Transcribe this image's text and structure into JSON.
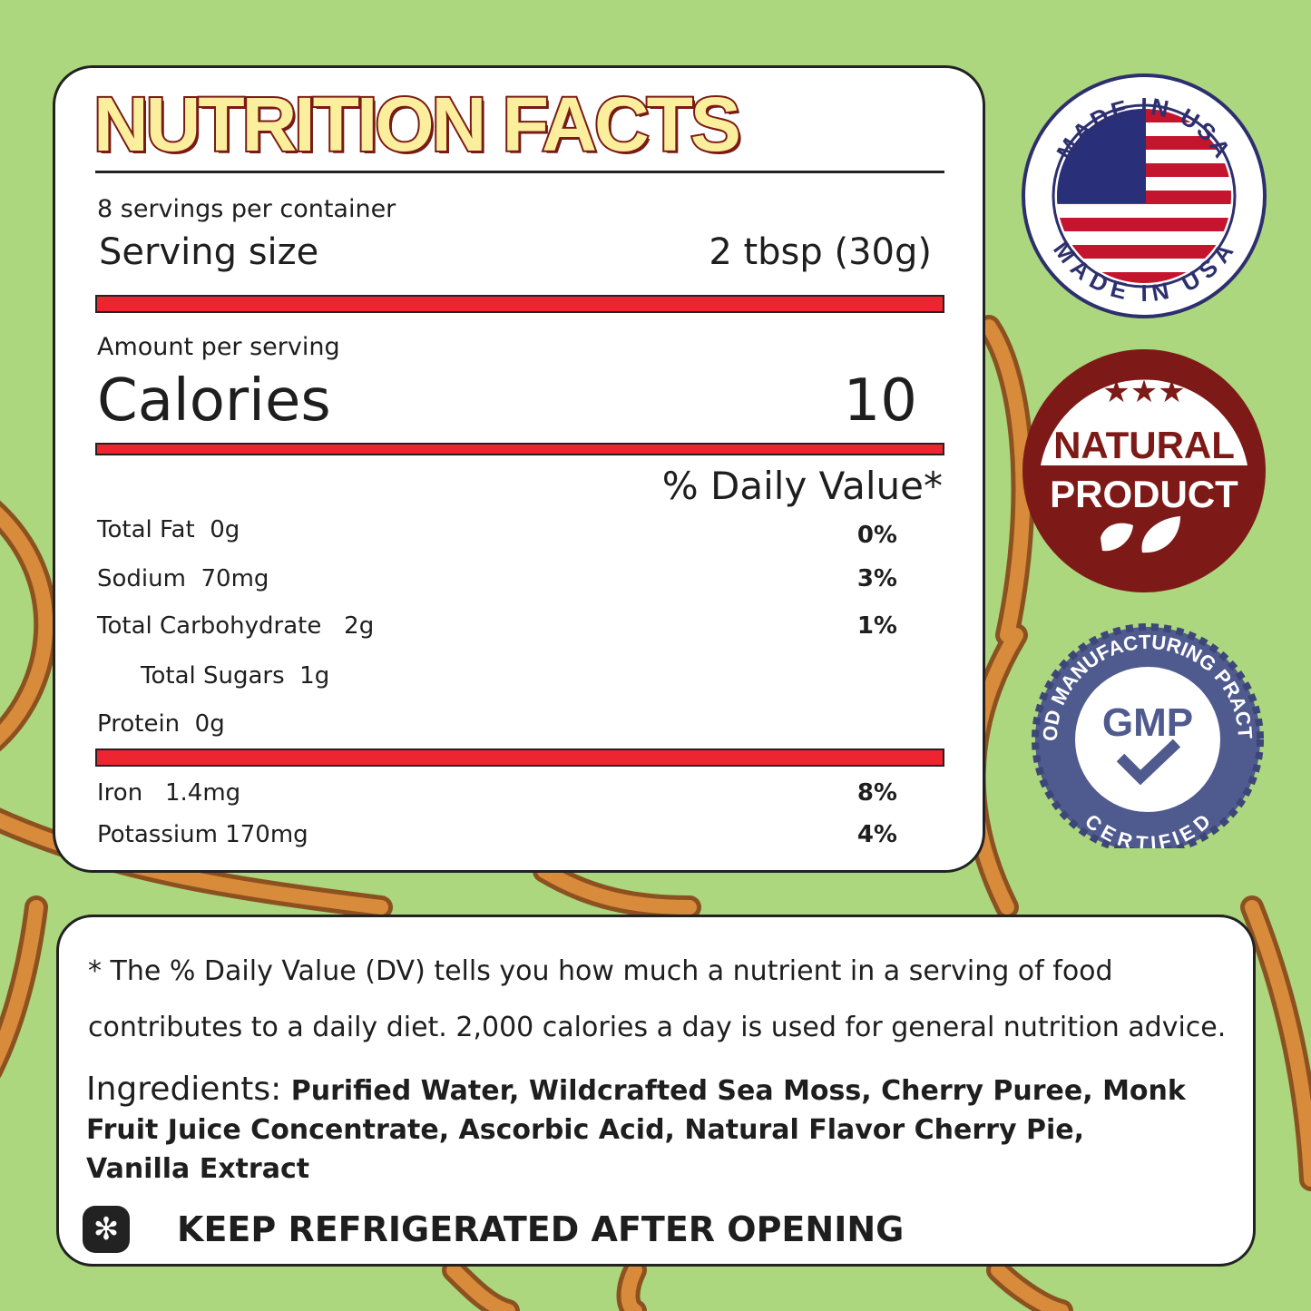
{
  "nutrition": {
    "title": "NUTRITION FACTS",
    "servings_per_container": "8 servings per container",
    "serving_size_label": "Serving size",
    "serving_size_value": "2 tbsp (30g)",
    "amount_per_serving": "Amount per serving",
    "calories_label": "Calories",
    "calories_value": "10",
    "dv_header": "% Daily Value*",
    "rows": [
      {
        "label": "Total Fat",
        "amount": "0g",
        "dv": "0%"
      },
      {
        "label": "Sodium",
        "amount": "70mg",
        "dv": "3%"
      },
      {
        "label": "Total Carbohydrate",
        "amount": "2g",
        "dv": "1%"
      },
      {
        "label": "Total Sugars",
        "amount": "1g",
        "dv": ""
      },
      {
        "label": "Protein",
        "amount": "0g",
        "dv": ""
      },
      {
        "label": "Iron",
        "amount": "1.4mg",
        "dv": "8%"
      },
      {
        "label": "Potassium",
        "amount": "170mg",
        "dv": "4%"
      }
    ]
  },
  "notes": {
    "dv_line1": "* The % Daily Value (DV) tells you how much a nutrient in a serving of food",
    "dv_line2": "contributes to a daily diet. 2,000 calories a day is used for general nutrition advice.",
    "ingredients_label": "Ingredients:",
    "ingredients": "Purified Water, Wildcrafted Sea Moss, Cherry Puree, Monk Fruit Juice Concentrate, Ascorbic Acid, Natural Flavor Cherry Pie, Vanilla Extract",
    "storage_icon": "snowflake-icon",
    "storage": "KEEP REFRIGERATED AFTER OPENING"
  },
  "badges": {
    "usa_top": "MADE IN USA",
    "usa_bottom": "MADE IN USA",
    "natural_line1": "NATURAL",
    "natural_line2": "PRODUCT",
    "gmp_arc": "GOOD MANUFACTURING PRACTICE",
    "gmp_center": "GMP",
    "gmp_bottom": "CERTIFIED"
  },
  "colors": {
    "background": "#acd77e",
    "accent_red": "#ee2431",
    "badge_maroon": "#7d1a18",
    "gmp_blue": "#4f5a8e",
    "seaweed": "#c9742e"
  }
}
